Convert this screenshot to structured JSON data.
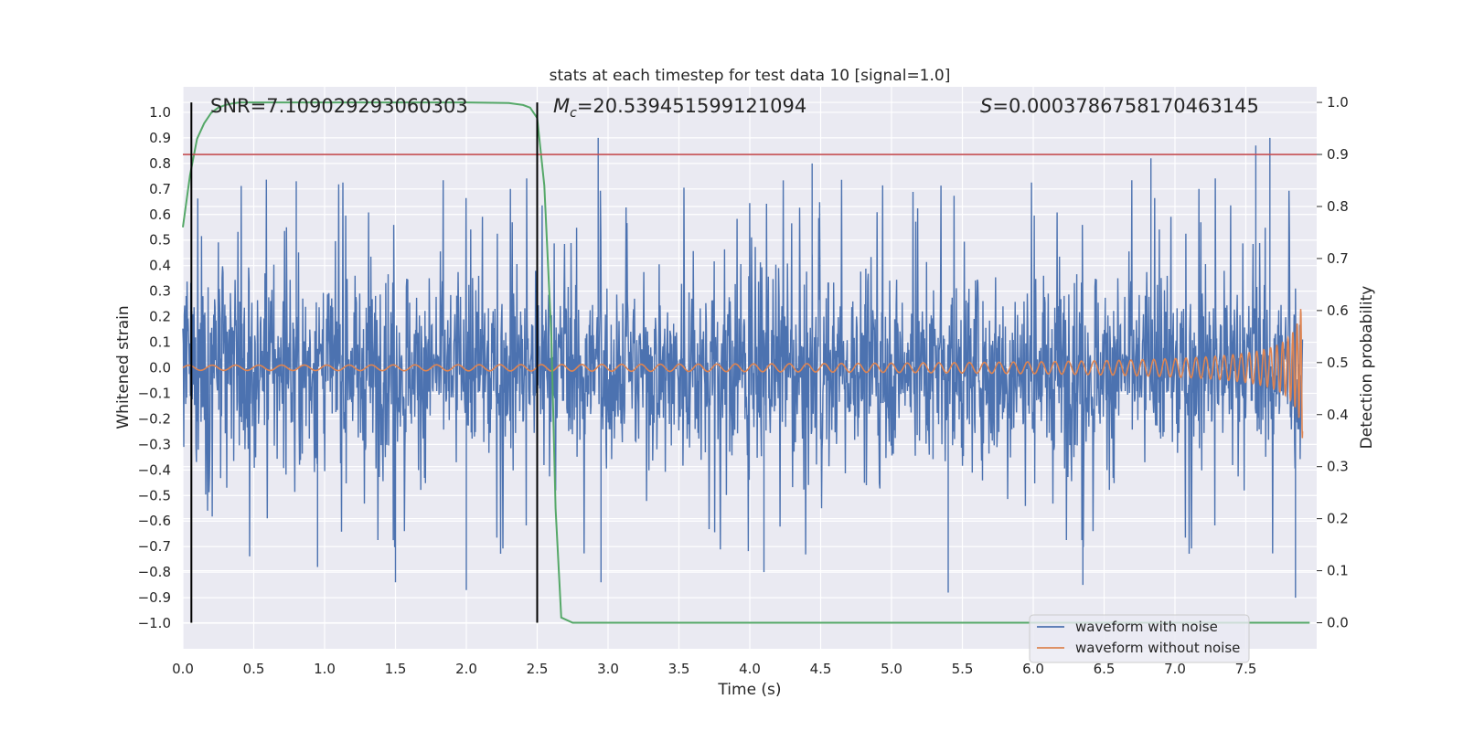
{
  "chart_data": {
    "type": "line",
    "title": "stats at each timestep for test data 10 [signal=1.0]",
    "xlabel": "Time (s)",
    "ylabel": "Whitened strain",
    "y2label": "Detection probability",
    "xlim": [
      0.0,
      8.0
    ],
    "ylim": [
      -1.1,
      1.1
    ],
    "y2lim": [
      -0.05,
      1.03
    ],
    "x_ticks": [
      0.0,
      0.5,
      1.0,
      1.5,
      2.0,
      2.5,
      3.0,
      3.5,
      4.0,
      4.5,
      5.0,
      5.5,
      6.0,
      6.5,
      7.0,
      7.5
    ],
    "x_tick_labels": [
      "0.0",
      "0.5",
      "1.0",
      "1.5",
      "2.0",
      "2.5",
      "3.0",
      "3.5",
      "4.0",
      "4.5",
      "5.0",
      "5.5",
      "6.0",
      "6.5",
      "7.0",
      "7.5"
    ],
    "y_ticks": [
      1.0,
      0.9,
      0.8,
      0.7,
      0.6,
      0.5,
      0.4,
      0.3,
      0.2,
      0.1,
      0.0,
      -0.1,
      -0.2,
      -0.3,
      -0.4,
      -0.5,
      -0.6,
      -0.7,
      -0.8,
      -0.9,
      -1.0
    ],
    "y_tick_labels": [
      "1.0",
      "0.9",
      "0.8",
      "0.7",
      "0.6",
      "0.5",
      "0.4",
      "0.3",
      "0.2",
      "0.1",
      "0.0",
      "−0.1",
      "−0.2",
      "−0.3",
      "−0.4",
      "−0.5",
      "−0.6",
      "−0.7",
      "−0.8",
      "−0.9",
      "−1.0"
    ],
    "y2_ticks": [
      1.0,
      0.9,
      0.8,
      0.7,
      0.6,
      0.5,
      0.4,
      0.3,
      0.2,
      0.1,
      0.0
    ],
    "y2_tick_labels": [
      "1.0",
      "0.9",
      "0.8",
      "0.7",
      "0.6",
      "0.5",
      "0.4",
      "0.3",
      "0.2",
      "0.1",
      "0.0"
    ],
    "grid": true,
    "annotations": {
      "snr": "SNR=7.109029293060303",
      "mc_symbol": "M",
      "mc_sub": "c",
      "mc_value": "=20.539451599121094",
      "s_symbol": "S",
      "s_value": "=0.0003786758170463145"
    },
    "legend": {
      "placement": "lower right",
      "entries": [
        "waveform with noise",
        "waveform without noise"
      ]
    },
    "series": [
      {
        "name": "waveform with noise",
        "axis": "left",
        "color": "#4c72b0",
        "kind": "noise",
        "envelope_x": [
          0.0,
          1.0,
          2.0,
          3.0,
          4.0,
          5.0,
          6.0,
          7.0,
          7.9
        ],
        "typical_abs": [
          0.4,
          0.4,
          0.4,
          0.4,
          0.4,
          0.4,
          0.4,
          0.4,
          0.4
        ],
        "peaks": [
          {
            "x": 2.93,
            "y": 0.9
          },
          {
            "x": 4.44,
            "y": 0.8
          },
          {
            "x": 6.83,
            "y": 0.82
          },
          {
            "x": 7.57,
            "y": 0.87
          },
          {
            "x": 7.67,
            "y": 0.9
          },
          {
            "x": 0.8,
            "y": 0.73
          },
          {
            "x": 1.5,
            "y": -0.84
          },
          {
            "x": 2.0,
            "y": -0.87
          },
          {
            "x": 2.95,
            "y": -0.84
          },
          {
            "x": 4.1,
            "y": -0.8
          },
          {
            "x": 5.4,
            "y": -0.88
          },
          {
            "x": 6.35,
            "y": -0.85
          },
          {
            "x": 7.85,
            "y": -0.9
          },
          {
            "x": 0.95,
            "y": -0.78
          }
        ]
      },
      {
        "name": "waveform without noise",
        "axis": "left",
        "color": "#dd8452",
        "kind": "chirp",
        "t_merge": 7.93,
        "amplitude_at_start": 0.01,
        "amplitude_at_merge": 0.68,
        "frequency_at_start": 6,
        "frequency_at_merge": 60
      },
      {
        "axis": "right",
        "color": "#55a868",
        "kind": "probability",
        "x": [
          0.0,
          0.05,
          0.1,
          0.15,
          0.2,
          0.25,
          0.3,
          0.35,
          0.4,
          0.5,
          1.0,
          1.5,
          2.0,
          2.3,
          2.4,
          2.45,
          2.5,
          2.55,
          2.6,
          2.63,
          2.67,
          2.75,
          3.0,
          4.0,
          5.0,
          6.0,
          7.0,
          7.95
        ],
        "y": [
          0.76,
          0.86,
          0.93,
          0.96,
          0.98,
          0.99,
          0.995,
          0.998,
          1.0,
          1.0,
          1.0,
          1.0,
          1.0,
          0.999,
          0.995,
          0.99,
          0.97,
          0.84,
          0.55,
          0.22,
          0.01,
          0.0,
          0.0,
          0.0,
          0.0,
          0.0,
          0.0,
          0.0
        ]
      }
    ],
    "threshold": {
      "axis": "right",
      "value": 0.9,
      "color": "#c44e52"
    },
    "vlines": [
      0.06,
      2.5
    ],
    "colors": {
      "axes_background": "#eaeaf2",
      "grid": "#ffffff",
      "noise": "#4c72b0",
      "clean": "#dd8452",
      "probability": "#55a868",
      "threshold": "#c44e52",
      "vline": "#000000"
    }
  }
}
